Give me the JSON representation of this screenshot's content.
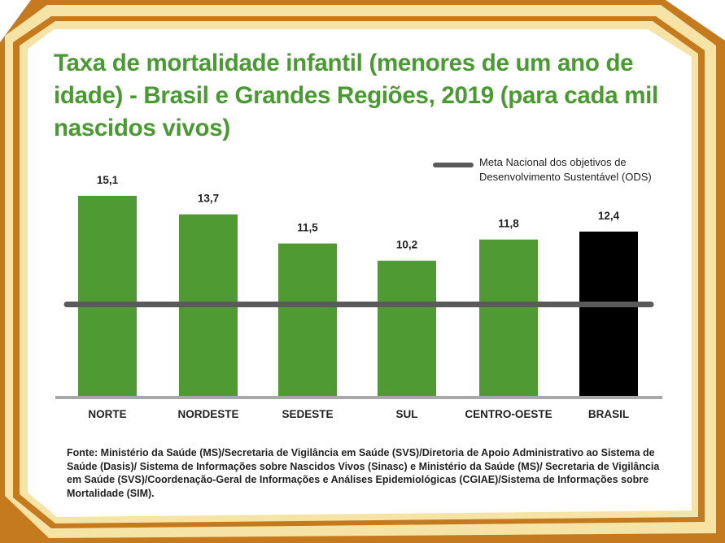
{
  "title": "Taxa de mortalidade infantil (menores de um ano de idade) - Brasil e Grandes Regiões, 2019 (para cada mil nascidos vivos)",
  "legend_label": "Meta Nacional dos objetivos de\nDesenvolvimento Sustentável (ODS)",
  "source": "Fonte: Ministério da Saúde (MS)/Secretaria de Vigilância em Saúde (SVS)/Diretoria de Apoio Administrativo ao Sistema de Saúde (Dasis)/ Sistema de Informações sobre Nascidos Vivos (Sinasc) e Ministério da Saúde (MS)/ Secretaria de Vigilância em Saúde (SVS)/Coordenação-Geral de Informações e Análises Epidemiológicas (CGIAE)/Sistema de Informações sobre Mortalidade (SIM).",
  "colors": {
    "title": "#4a9a32",
    "bar_region": "#4f9a33",
    "bar_national": "#000000",
    "meta_line": "#5a5a5a",
    "baseline": "#a8a8a8",
    "frame_cream": "#f6e4a6",
    "frame_brown": "#c57a1e"
  },
  "chart_data": {
    "type": "bar",
    "categories": [
      "NORTE",
      "NORDESTE",
      "SEDESTE",
      "SUL",
      "CENTRO-OESTE",
      "BRASIL"
    ],
    "values": [
      15.1,
      13.7,
      11.5,
      10.2,
      11.8,
      12.4
    ],
    "value_labels": [
      "15,1",
      "13,7",
      "11,5",
      "10,2",
      "11,8",
      "12,4"
    ],
    "highlight": "BRASIL",
    "reference_line": {
      "value": 5
    },
    "ylim": [
      0,
      16.5
    ]
  }
}
